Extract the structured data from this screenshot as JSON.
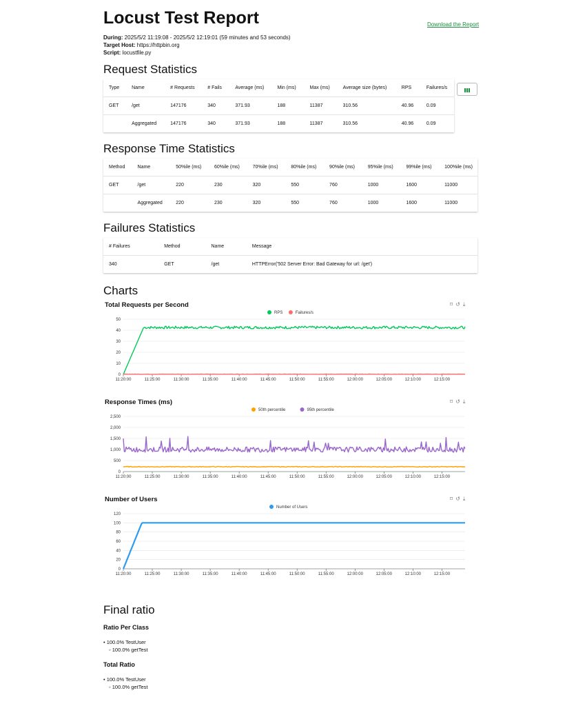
{
  "header": {
    "title": "Locust Test Report",
    "download_label": "Download the Report",
    "during_label": "During:",
    "during_value": "2025/5/2 11:19:08 - 2025/5/2 12:19:01 (59 minutes and 53 seconds)",
    "host_label": "Target Host:",
    "host_value": "https://httpbin.org",
    "script_label": "Script:",
    "script_value": "locustfile.py"
  },
  "request_stats": {
    "title": "Request Statistics",
    "columns": [
      "Type",
      "Name",
      "# Requests",
      "# Fails",
      "Average (ms)",
      "Min (ms)",
      "Max (ms)",
      "Average size (bytes)",
      "RPS",
      "Failures/s"
    ],
    "rows": [
      [
        "GET",
        "/get",
        "147176",
        "340",
        "371.93",
        "188",
        "11387",
        "310.56",
        "40.96",
        "0.09"
      ],
      [
        "",
        "Aggregated",
        "147176",
        "340",
        "371.93",
        "188",
        "11387",
        "310.56",
        "40.96",
        "0.09"
      ]
    ]
  },
  "response_stats": {
    "title": "Response Time Statistics",
    "columns": [
      "Method",
      "Name",
      "50%ile (ms)",
      "60%ile (ms)",
      "70%ile (ms)",
      "80%ile (ms)",
      "90%ile (ms)",
      "95%ile (ms)",
      "99%ile (ms)",
      "100%ile (ms)"
    ],
    "rows": [
      [
        "GET",
        "/get",
        "220",
        "230",
        "320",
        "550",
        "760",
        "1000",
        "1600",
        "11000"
      ],
      [
        "",
        "Aggregated",
        "220",
        "230",
        "320",
        "550",
        "760",
        "1000",
        "1600",
        "11000"
      ]
    ]
  },
  "failure_stats": {
    "title": "Failures Statistics",
    "columns": [
      "# Failures",
      "Method",
      "Name",
      "Message"
    ],
    "rows": [
      [
        "340",
        "GET",
        "/get",
        "HTTPError('502 Server Error: Bad Gateway for url: /get')"
      ]
    ]
  },
  "charts_title": "Charts",
  "chart_data": [
    {
      "type": "line",
      "title": "Total Requests per Second",
      "x": [
        "11:20:00",
        "11:25:00",
        "11:30:00",
        "11:35:00",
        "11:40:00",
        "11:45:00",
        "11:50:00",
        "11:55:00",
        "12:00:00",
        "12:05:00",
        "12:10:00",
        "12:15:00"
      ],
      "ylim": [
        0,
        50
      ],
      "yticks": [
        0,
        10,
        20,
        30,
        40,
        50
      ],
      "legend": "top-center",
      "series": [
        {
          "name": "RPS",
          "color": "#00ca5a",
          "ramp_end_min": 3.5,
          "steady": 42.5,
          "noise": 1.2
        },
        {
          "name": "Failures/s",
          "color": "#ff6d6d",
          "ramp_end_min": 0,
          "steady": 0.2,
          "noise": 0.15
        }
      ]
    },
    {
      "type": "line",
      "title": "Response Times (ms)",
      "x": [
        "11:20:00",
        "11:25:00",
        "11:30:00",
        "11:35:00",
        "11:40:00",
        "11:45:00",
        "11:50:00",
        "11:55:00",
        "12:00:00",
        "12:05:00",
        "12:10:00",
        "12:15:00"
      ],
      "ylim": [
        0,
        2500
      ],
      "yticks": [
        0,
        500,
        1000,
        1500,
        2000,
        2500
      ],
      "legend": "top-center",
      "series": [
        {
          "name": "50th percentile",
          "color": "#ff9f00",
          "steady": 220,
          "noise": 15
        },
        {
          "name": "95th percentile",
          "color": "#9966cc",
          "steady": 1000,
          "noise": 120
        }
      ]
    },
    {
      "type": "line",
      "title": "Number of Users",
      "x": [
        "11:20:00",
        "11:25:00",
        "11:30:00",
        "11:35:00",
        "11:40:00",
        "11:45:00",
        "11:50:00",
        "11:55:00",
        "12:00:00",
        "12:05:00",
        "12:10:00",
        "12:15:00"
      ],
      "ylim": [
        0,
        120
      ],
      "yticks": [
        0,
        20,
        40,
        60,
        80,
        100,
        120
      ],
      "legend": "top-center",
      "series": [
        {
          "name": "Number of Users",
          "color": "#2d9cf0",
          "ramp_end_min": 3.2,
          "steady": 100,
          "noise": 0
        }
      ]
    }
  ],
  "final_ratio": {
    "title": "Final ratio",
    "per_class_title": "Ratio Per Class",
    "per_class": [
      "• 100.0% TestUser",
      "◦ 100.0% getTest"
    ],
    "total_title": "Total Ratio",
    "total": [
      "• 100.0% TestUser",
      "◦ 100.0% getTest"
    ]
  },
  "icons": [
    "zoom-icon",
    "reset-icon",
    "download-icon",
    "columns-icon"
  ]
}
